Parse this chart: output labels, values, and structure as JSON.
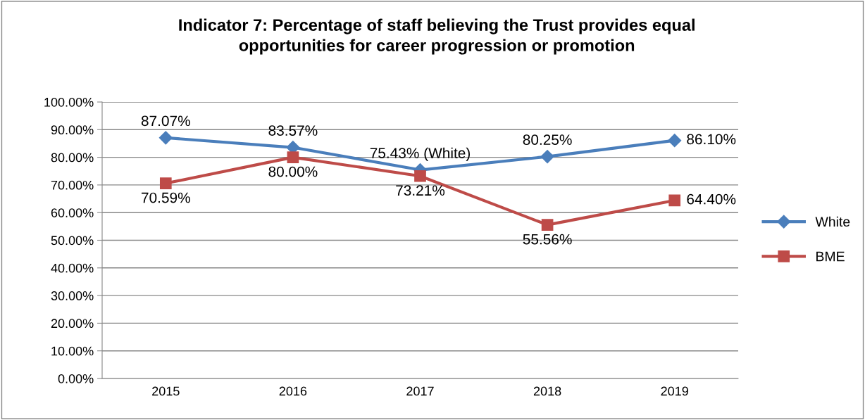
{
  "chart_data": {
    "type": "line",
    "title": "Indicator 7: Percentage of staff believing the Trust provides equal\nopportunities for career progression or promotion",
    "categories": [
      "2015",
      "2016",
      "2017",
      "2018",
      "2019"
    ],
    "series": [
      {
        "name": "White",
        "color": "#4a7ebb",
        "marker": "diamond",
        "values": [
          87.07,
          83.57,
          75.43,
          80.25,
          86.1
        ],
        "value_labels": [
          "87.07%",
          "83.57%",
          "75.43% (White)",
          "80.25%",
          "86.10%"
        ]
      },
      {
        "name": "BME",
        "color": "#be4b48",
        "marker": "square",
        "values": [
          70.59,
          80.0,
          73.21,
          55.56,
          64.4
        ],
        "value_labels": [
          "70.59%",
          "80.00%",
          "73.21%",
          "55.56%",
          "64.40%"
        ]
      }
    ],
    "ylim": [
      0,
      100
    ],
    "yticks": [
      {
        "value": 0,
        "label": "0.00%"
      },
      {
        "value": 10,
        "label": "10.00%"
      },
      {
        "value": 20,
        "label": "20.00%"
      },
      {
        "value": 30,
        "label": "30.00%"
      },
      {
        "value": 40,
        "label": "40.00%"
      },
      {
        "value": 50,
        "label": "50.00%"
      },
      {
        "value": 60,
        "label": "60.00%"
      },
      {
        "value": 70,
        "label": "70.00%"
      },
      {
        "value": 80,
        "label": "80.00%"
      },
      {
        "value": 90,
        "label": "90.00%"
      },
      {
        "value": 100,
        "label": "100.00%"
      }
    ],
    "grid": "y",
    "legend": "right",
    "line_style": "solid"
  }
}
